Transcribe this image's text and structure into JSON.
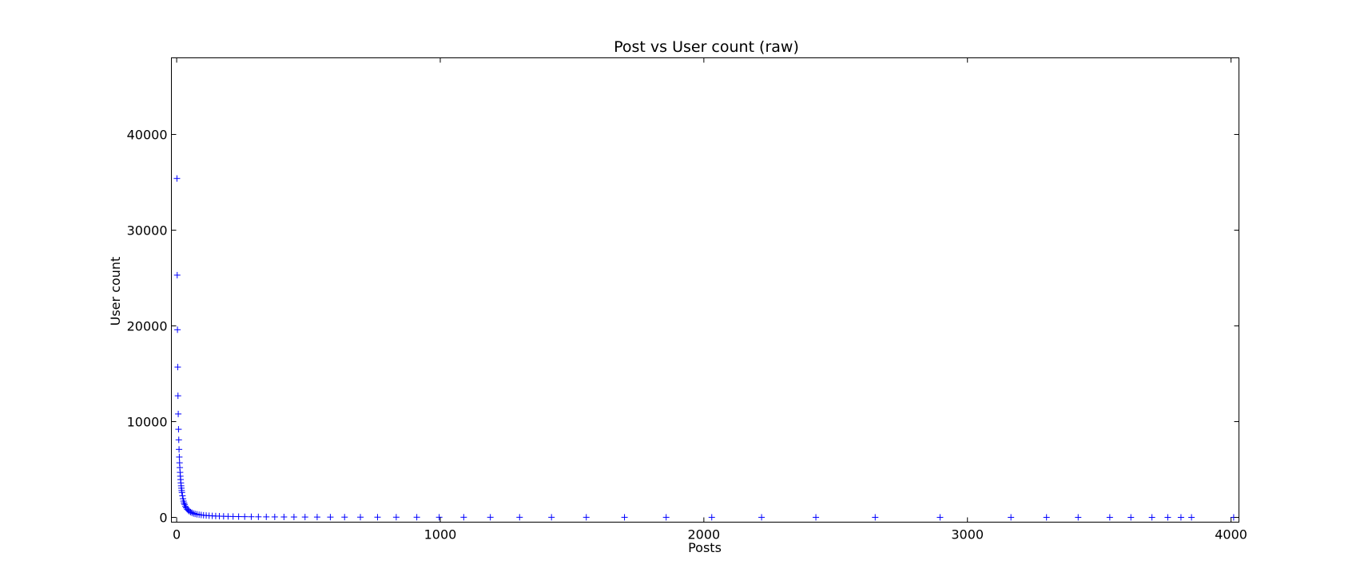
{
  "chart_data": {
    "type": "scatter",
    "title": "Post vs User count (raw)",
    "xlabel": "Posts",
    "ylabel": "User count",
    "xlim": [
      -20,
      4030
    ],
    "ylim": [
      -500,
      48000
    ],
    "xticks": [
      0,
      1000,
      2000,
      3000,
      4000
    ],
    "yticks": [
      0,
      10000,
      20000,
      30000,
      40000
    ],
    "grid": false,
    "marker": "+",
    "color": "#0000ff",
    "series": [
      {
        "x": [
          1,
          2,
          3,
          4,
          5,
          6,
          7,
          8,
          9,
          10,
          11,
          12,
          13,
          14,
          15,
          16,
          17,
          18,
          19,
          20,
          22,
          24,
          26,
          28,
          30,
          33,
          36,
          40,
          44,
          48,
          53,
          58,
          64,
          70,
          77,
          85,
          93,
          102,
          112,
          123,
          135,
          148,
          162,
          178,
          195,
          214,
          235,
          258,
          283,
          310,
          340,
          372,
          407,
          445,
          487,
          533,
          583,
          637,
          697,
          762,
          833,
          911,
          996,
          1089,
          1190,
          1301,
          1422,
          1554,
          1699,
          1857,
          2030,
          2219,
          2425,
          2650,
          2896,
          3165,
          3300,
          3420,
          3540,
          3620,
          3700,
          3760,
          3810,
          3850,
          4010
        ],
        "y": [
          35400,
          25300,
          19600,
          15700,
          12700,
          10800,
          9200,
          8100,
          7100,
          6300,
          5700,
          5200,
          4700,
          4300,
          3950,
          3600,
          3300,
          3050,
          2800,
          2600,
          2250,
          1950,
          1700,
          1500,
          1350,
          1150,
          1000,
          850,
          740,
          640,
          550,
          480,
          410,
          360,
          320,
          280,
          250,
          220,
          195,
          175,
          155,
          140,
          125,
          110,
          100,
          90,
          80,
          72,
          65,
          58,
          52,
          47,
          42,
          38,
          34,
          31,
          28,
          25,
          22,
          20,
          18,
          16,
          14,
          13,
          11,
          10,
          9,
          8,
          7,
          6,
          5,
          5,
          4,
          4,
          3,
          3,
          2,
          2,
          2,
          1,
          1,
          1,
          1,
          1,
          1
        ]
      }
    ]
  }
}
